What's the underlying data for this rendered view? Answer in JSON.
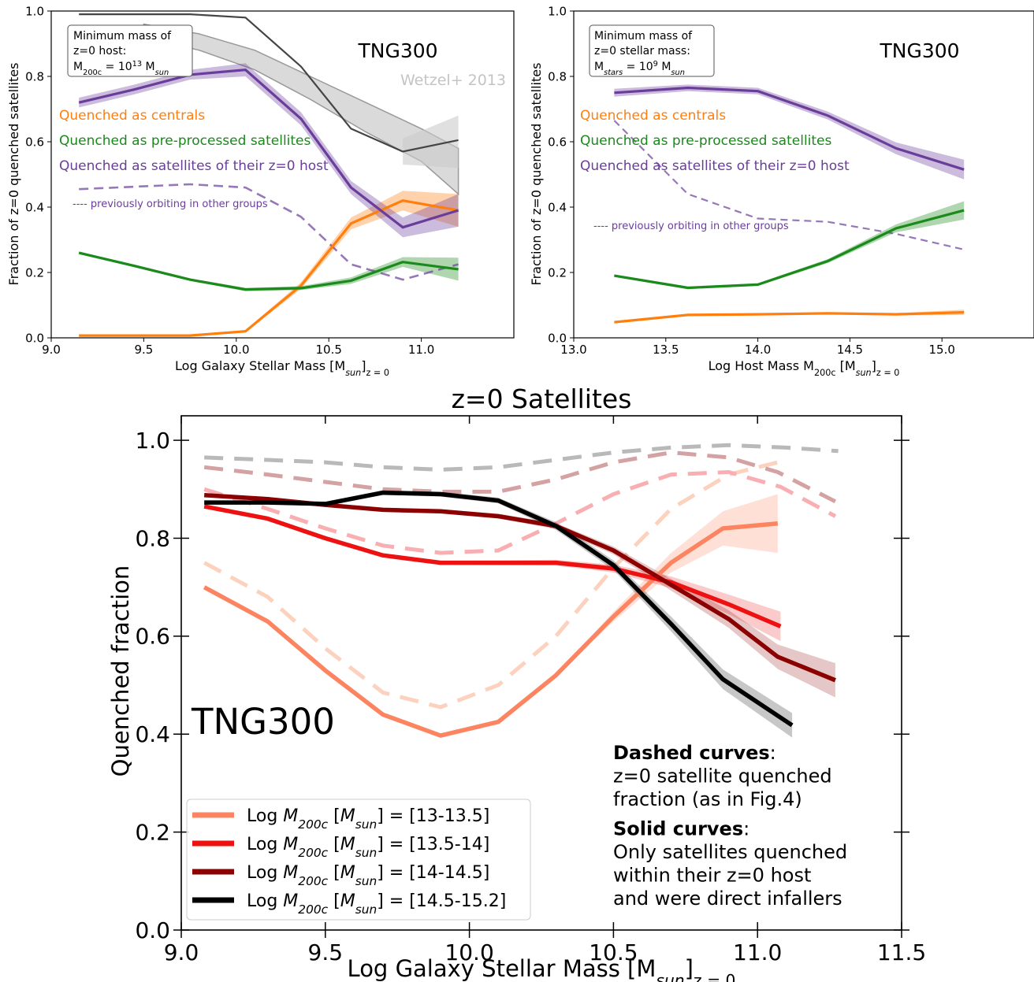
{
  "colors": {
    "orange": "#ff7f0e",
    "green": "#1a8a1a",
    "purple": "#6a3d9a",
    "wetzel": "#bbbbbb",
    "all": "#444444",
    "h1": "#fc8460",
    "h2": "#ee1111",
    "h3": "#8b0000",
    "h4": "#000000",
    "d1": "#fcd2bf",
    "d2": "#f9aeb2",
    "d3": "#d4a2a2",
    "d4": "#b9b9b9"
  },
  "chart_data": [
    {
      "id": "top-left",
      "type": "line",
      "title": "TNG300",
      "xlabel": "Log Galaxy Stellar Mass [M_sun]_{z=0}",
      "ylabel": "Fraction of z=0 quenched satellites",
      "xlim": [
        9.0,
        11.5
      ],
      "ylim": [
        0.0,
        1.0
      ],
      "xticks": [
        "9.0",
        "9.5",
        "10.0",
        "10.5",
        "11.0"
      ],
      "yticks": [
        "0.0",
        "0.2",
        "0.4",
        "0.6",
        "0.8",
        "1.0"
      ],
      "infobox": [
        "Minimum mass of",
        "z=0 host:",
        "M200c = 10^13 Msun"
      ],
      "wetzel_label": "Wetzel+ 2013",
      "legend": [
        "Quenched as centrals",
        "Quenched as pre-processed satellites",
        "Quenched as satellites of their z=0 host"
      ],
      "dashed_note": "---- previously orbiting in other groups",
      "series": [
        {
          "key": "all",
          "x": [
            9.15,
            9.75,
            10.05,
            10.35,
            10.62,
            10.9,
            11.2
          ],
          "y": [
            0.99,
            0.99,
            0.98,
            0.83,
            0.64,
            0.57,
            0.605
          ]
        },
        {
          "key": "centrals",
          "x": [
            9.15,
            9.75,
            10.05,
            10.35,
            10.62,
            10.9,
            11.2
          ],
          "y": [
            0.007,
            0.007,
            0.02,
            0.16,
            0.35,
            0.42,
            0.39
          ],
          "err": [
            0.002,
            0.002,
            0.004,
            0.01,
            0.018,
            0.03,
            0.05
          ]
        },
        {
          "key": "preprocessed",
          "x": [
            9.15,
            9.45,
            9.75,
            10.05,
            10.35,
            10.62,
            10.9,
            11.2
          ],
          "y": [
            0.26,
            0.22,
            0.178,
            0.148,
            0.152,
            0.175,
            0.232,
            0.21
          ],
          "err": [
            0.004,
            0.004,
            0.004,
            0.005,
            0.006,
            0.01,
            0.015,
            0.035
          ]
        },
        {
          "key": "z0host",
          "x": [
            9.15,
            9.45,
            9.75,
            10.05,
            10.35,
            10.62,
            10.9,
            11.2
          ],
          "y": [
            0.72,
            0.76,
            0.805,
            0.82,
            0.67,
            0.46,
            0.338,
            0.39
          ],
          "err": [
            0.015,
            0.015,
            0.015,
            0.02,
            0.02,
            0.02,
            0.03,
            0.05
          ]
        },
        {
          "key": "dashed",
          "x": [
            9.15,
            9.75,
            10.05,
            10.35,
            10.62,
            10.9,
            11.2
          ],
          "y": [
            0.455,
            0.47,
            0.46,
            0.37,
            0.225,
            0.178,
            0.225
          ]
        }
      ],
      "wetzel_band": {
        "x": [
          9.5,
          9.8,
          10.1,
          10.4,
          10.7,
          11.0,
          11.2
        ],
        "lower": [
          0.92,
          0.88,
          0.82,
          0.73,
          0.63,
          0.54,
          0.44
        ],
        "upper": [
          0.96,
          0.93,
          0.88,
          0.8,
          0.72,
          0.64,
          0.58
        ]
      },
      "all_band": {
        "x": [
          10.9,
          11.2
        ],
        "lower": [
          0.53,
          0.52
        ],
        "upper": [
          0.61,
          0.68
        ]
      }
    },
    {
      "id": "top-right",
      "type": "line",
      "title": "TNG300",
      "xlabel": "Log Host Mass M200c [M_sun]_{z=0}",
      "ylabel": "Fraction of z=0 quenched satellites",
      "xlim": [
        13.0,
        15.5
      ],
      "ylim": [
        0.0,
        1.0
      ],
      "xticks": [
        "13.0",
        "13.5",
        "14.0",
        "14.5",
        "15.0"
      ],
      "yticks": [
        "0.0",
        "0.2",
        "0.4",
        "0.6",
        "0.8",
        "1.0"
      ],
      "infobox": [
        "Minimum mass of",
        "z=0 stellar mass:",
        "Mstars = 10^9 Msun"
      ],
      "legend": [
        "Quenched as centrals",
        "Quenched as pre-processed satellites",
        "Quenched as satellites of their z=0 host"
      ],
      "dashed_note": "---- previously orbiting in other groups",
      "series": [
        {
          "key": "centrals",
          "x": [
            13.22,
            13.62,
            14.0,
            14.38,
            14.75,
            15.12
          ],
          "y": [
            0.048,
            0.07,
            0.072,
            0.075,
            0.072,
            0.078
          ],
          "err": [
            0.002,
            0.002,
            0.002,
            0.003,
            0.004,
            0.008
          ]
        },
        {
          "key": "preprocessed",
          "x": [
            13.22,
            13.62,
            14.0,
            14.38,
            14.75,
            15.12
          ],
          "y": [
            0.19,
            0.153,
            0.163,
            0.235,
            0.335,
            0.39
          ],
          "err": [
            0.004,
            0.004,
            0.004,
            0.006,
            0.012,
            0.028
          ]
        },
        {
          "key": "z0host",
          "x": [
            13.22,
            13.62,
            14.0,
            14.38,
            14.75,
            15.12
          ],
          "y": [
            0.75,
            0.765,
            0.755,
            0.68,
            0.58,
            0.515
          ],
          "err": [
            0.012,
            0.01,
            0.01,
            0.012,
            0.018,
            0.03
          ]
        },
        {
          "key": "dashed",
          "x": [
            13.22,
            13.62,
            14.0,
            14.38,
            14.75,
            15.12
          ],
          "y": [
            0.665,
            0.44,
            0.365,
            0.355,
            0.318,
            0.27
          ]
        }
      ]
    },
    {
      "id": "bottom",
      "type": "line",
      "title": "z=0 Satellites",
      "xlabel": "Log Galaxy Stellar Mass [M_sun]_{z=0}",
      "ylabel": "Quenched fraction",
      "xlim": [
        9.0,
        11.5
      ],
      "ylim": [
        0.0,
        1.05
      ],
      "xticks": [
        "9.0",
        "9.5",
        "10.0",
        "10.5",
        "11.0",
        "11.5"
      ],
      "yticks": [
        "0.0",
        "0.2",
        "0.4",
        "0.6",
        "0.8",
        "1.0"
      ],
      "sim_label": "TNG300",
      "notes": [
        {
          "bold": "Dashed curves",
          "rest": ":"
        },
        {
          "bold": "",
          "rest": "z=0 satellite quenched"
        },
        {
          "bold": "",
          "rest": "fraction (as in Fig.4)"
        },
        {
          "bold": "Solid curves",
          "rest": ":"
        },
        {
          "bold": "",
          "rest": "Only satellites quenched"
        },
        {
          "bold": "",
          "rest": "within their z=0 host"
        },
        {
          "bold": "",
          "rest": "and were direct infallers"
        }
      ],
      "legend": [
        {
          "key": "h1",
          "range": "[13-13.5]"
        },
        {
          "key": "h2",
          "range": "[13.5-14]"
        },
        {
          "key": "h3",
          "range": "[14-14.5]"
        },
        {
          "key": "h4",
          "range": "[14.5-15.2]"
        }
      ],
      "series": [
        {
          "key": "h1",
          "style": "solid",
          "x": [
            9.08,
            9.3,
            9.5,
            9.7,
            9.9,
            10.1,
            10.3,
            10.5,
            10.7,
            10.88,
            11.07
          ],
          "y": [
            0.7,
            0.63,
            0.53,
            0.44,
            0.397,
            0.425,
            0.52,
            0.64,
            0.75,
            0.82,
            0.83
          ],
          "err": [
            0,
            0,
            0,
            0,
            0,
            0,
            0,
            0.01,
            0.02,
            0.035,
            0.06
          ]
        },
        {
          "key": "h2",
          "style": "solid",
          "x": [
            9.08,
            9.3,
            9.5,
            9.7,
            9.9,
            10.1,
            10.3,
            10.5,
            10.7,
            10.9,
            11.08
          ],
          "y": [
            0.865,
            0.84,
            0.8,
            0.765,
            0.75,
            0.75,
            0.75,
            0.738,
            0.71,
            0.665,
            0.62
          ],
          "err": [
            0.004,
            0.004,
            0.004,
            0.004,
            0.004,
            0.005,
            0.006,
            0.008,
            0.012,
            0.02,
            0.03
          ]
        },
        {
          "key": "h3",
          "style": "solid",
          "x": [
            9.08,
            9.3,
            9.5,
            9.7,
            9.9,
            10.1,
            10.3,
            10.5,
            10.7,
            10.9,
            11.07,
            11.27
          ],
          "y": [
            0.888,
            0.88,
            0.868,
            0.858,
            0.855,
            0.845,
            0.825,
            0.775,
            0.705,
            0.635,
            0.558,
            0.51
          ],
          "err": [
            0.004,
            0.004,
            0.004,
            0.004,
            0.004,
            0.005,
            0.006,
            0.008,
            0.012,
            0.018,
            0.025,
            0.035
          ]
        },
        {
          "key": "h4",
          "style": "solid",
          "x": [
            9.08,
            9.3,
            9.5,
            9.7,
            9.9,
            10.1,
            10.3,
            10.5,
            10.7,
            10.88,
            11.12
          ],
          "y": [
            0.873,
            0.873,
            0.87,
            0.893,
            0.89,
            0.877,
            0.825,
            0.745,
            0.625,
            0.512,
            0.418
          ],
          "err": [
            0.004,
            0.004,
            0.004,
            0.005,
            0.005,
            0.006,
            0.008,
            0.01,
            0.015,
            0.02,
            0.025
          ]
        },
        {
          "key": "d1",
          "style": "dashed",
          "x": [
            9.08,
            9.3,
            9.5,
            9.7,
            9.9,
            10.1,
            10.3,
            10.5,
            10.7,
            10.9,
            11.07
          ],
          "y": [
            0.75,
            0.68,
            0.575,
            0.485,
            0.455,
            0.5,
            0.6,
            0.74,
            0.86,
            0.93,
            0.955
          ]
        },
        {
          "key": "d2",
          "style": "dashed",
          "x": [
            9.08,
            9.3,
            9.5,
            9.7,
            9.9,
            10.1,
            10.3,
            10.5,
            10.7,
            10.9,
            11.08,
            11.27
          ],
          "y": [
            0.9,
            0.86,
            0.82,
            0.785,
            0.77,
            0.775,
            0.83,
            0.89,
            0.93,
            0.935,
            0.905,
            0.845
          ]
        },
        {
          "key": "d3",
          "style": "dashed",
          "x": [
            9.08,
            9.3,
            9.5,
            9.7,
            9.9,
            10.1,
            10.3,
            10.5,
            10.7,
            10.9,
            11.07,
            11.27
          ],
          "y": [
            0.945,
            0.93,
            0.915,
            0.9,
            0.895,
            0.895,
            0.92,
            0.955,
            0.975,
            0.965,
            0.935,
            0.875
          ]
        },
        {
          "key": "d4",
          "style": "dashed",
          "x": [
            9.08,
            9.3,
            9.5,
            9.7,
            9.9,
            10.1,
            10.3,
            10.5,
            10.7,
            10.9,
            11.1,
            11.28
          ],
          "y": [
            0.965,
            0.96,
            0.955,
            0.945,
            0.94,
            0.945,
            0.96,
            0.975,
            0.985,
            0.99,
            0.985,
            0.978
          ]
        }
      ]
    }
  ]
}
